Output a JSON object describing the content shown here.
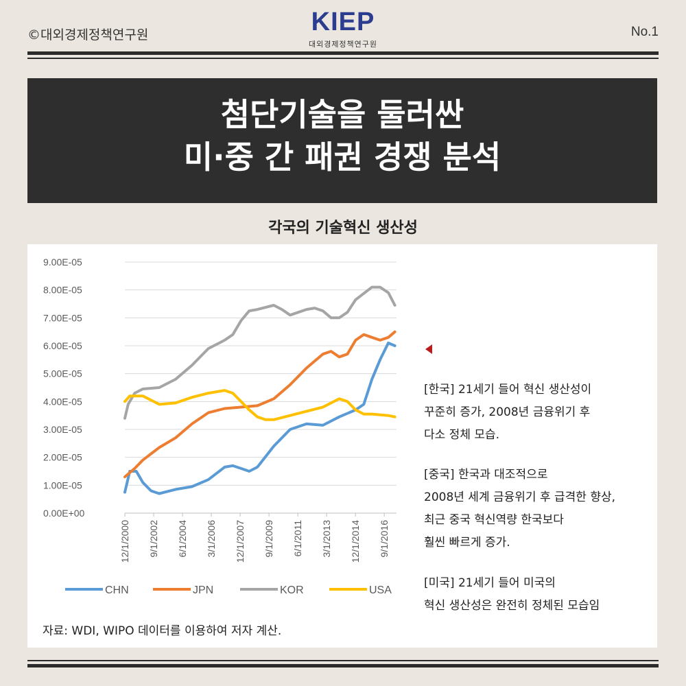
{
  "header": {
    "copyright": "©대외경제정책연구원",
    "logo_text": "KIEP",
    "logo_subtext": "대외경제정책연구원",
    "page_number": "No.1"
  },
  "banner": {
    "line1": "첨단기술을 둘러싼",
    "line2": "미·중 간 패권 경쟁 분석"
  },
  "subtitle": "각국의 기술혁신 생산성",
  "source": "자료: WDI, WIPO 데이터를 이용하여 저자 계산.",
  "notes": {
    "korea": [
      "[한국] 21세기 들어 혁신 생산성이",
      "꾸준히 증가, 2008년 금융위기 후",
      "다소 정체 모습."
    ],
    "china": [
      "[중국] 한국과 대조적으로",
      "2008년 세계 금융위기 후 급격한 향상,",
      "최근 중국 혁신역량 한국보다",
      "훨씬 빠르게 증가."
    ],
    "usa": [
      "[미국] 21세기 들어 미국의",
      "혁신 생산성은 완전히 정체된 모습임"
    ]
  },
  "colors": {
    "CHN": "#5b9bd5",
    "JPN": "#ed7d31",
    "KOR": "#a5a5a5",
    "USA": "#ffc000",
    "marker": "#b91c1c"
  },
  "chart_data": {
    "type": "line",
    "title": "",
    "ylim": [
      0,
      9e-05
    ],
    "ytick_labels": [
      "0.00E+00",
      "1.00E-05",
      "2.00E-05",
      "3.00E-05",
      "4.00E-05",
      "5.00E-05",
      "6.00E-05",
      "7.00E-05",
      "8.00E-05",
      "9.00E-05"
    ],
    "xtick_labels": [
      "12/1/2000",
      "9/1/2002",
      "6/1/2004",
      "3/1/2006",
      "12/1/2007",
      "9/1/2009",
      "6/1/2011",
      "3/1/2013",
      "12/1/2014",
      "9/1/2016"
    ],
    "x_range": [
      2000.9,
      2017.5
    ],
    "grid": true,
    "legend": "bottom",
    "series": [
      {
        "name": "CHN",
        "x": [
          2000.9,
          2001.2,
          2001.6,
          2002.0,
          2002.5,
          2003.0,
          2004.0,
          2005.0,
          2006.0,
          2007.0,
          2007.5,
          2008.0,
          2008.5,
          2009.0,
          2010.0,
          2011.0,
          2012.0,
          2013.0,
          2014.0,
          2015.0,
          2015.5,
          2016.0,
          2016.5,
          2017.0,
          2017.4
        ],
        "y": [
          7.5e-06,
          1.5e-05,
          1.5e-05,
          1.1e-05,
          8e-06,
          7e-06,
          8.5e-06,
          9.5e-06,
          1.2e-05,
          1.65e-05,
          1.7e-05,
          1.6e-05,
          1.5e-05,
          1.65e-05,
          2.4e-05,
          3e-05,
          3.2e-05,
          3.15e-05,
          3.45e-05,
          3.7e-05,
          3.9e-05,
          4.8e-05,
          5.5e-05,
          6.1e-05,
          6e-05
        ]
      },
      {
        "name": "JPN",
        "x": [
          2000.9,
          2001.5,
          2002.0,
          2003.0,
          2004.0,
          2005.0,
          2006.0,
          2007.0,
          2008.0,
          2009.0,
          2010.0,
          2011.0,
          2012.0,
          2013.0,
          2013.5,
          2014.0,
          2014.5,
          2015.0,
          2015.5,
          2016.0,
          2016.5,
          2017.0,
          2017.4
        ],
        "y": [
          1.3e-05,
          1.6e-05,
          1.9e-05,
          2.35e-05,
          2.7e-05,
          3.2e-05,
          3.6e-05,
          3.75e-05,
          3.8e-05,
          3.85e-05,
          4.1e-05,
          4.6e-05,
          5.2e-05,
          5.7e-05,
          5.8e-05,
          5.6e-05,
          5.7e-05,
          6.2e-05,
          6.4e-05,
          6.3e-05,
          6.2e-05,
          6.3e-05,
          6.5e-05
        ]
      },
      {
        "name": "KOR",
        "x": [
          2000.9,
          2001.1,
          2001.5,
          2002.0,
          2003.0,
          2004.0,
          2005.0,
          2006.0,
          2007.0,
          2007.5,
          2008.0,
          2008.5,
          2009.0,
          2010.0,
          2010.5,
          2011.0,
          2012.0,
          2012.5,
          2013.0,
          2013.5,
          2014.0,
          2014.5,
          2015.0,
          2016.0,
          2016.5,
          2017.0,
          2017.4
        ],
        "y": [
          3.4e-05,
          3.9e-05,
          4.3e-05,
          4.45e-05,
          4.5e-05,
          4.8e-05,
          5.3e-05,
          5.9e-05,
          6.2e-05,
          6.4e-05,
          6.9e-05,
          7.25e-05,
          7.3e-05,
          7.45e-05,
          7.3e-05,
          7.1e-05,
          7.3e-05,
          7.35e-05,
          7.25e-05,
          7e-05,
          7e-05,
          7.2e-05,
          7.65e-05,
          8.1e-05,
          8.1e-05,
          7.9e-05,
          7.45e-05
        ]
      },
      {
        "name": "USA",
        "x": [
          2000.9,
          2001.2,
          2002.0,
          2003.0,
          2004.0,
          2005.0,
          2006.0,
          2007.0,
          2007.5,
          2008.0,
          2008.5,
          2009.0,
          2009.5,
          2010.0,
          2011.0,
          2012.0,
          2013.0,
          2014.0,
          2014.5,
          2015.0,
          2015.5,
          2016.0,
          2017.0,
          2017.4
        ],
        "y": [
          4e-05,
          4.2e-05,
          4.2e-05,
          3.9e-05,
          3.95e-05,
          4.15e-05,
          4.3e-05,
          4.4e-05,
          4.3e-05,
          4e-05,
          3.7e-05,
          3.45e-05,
          3.35e-05,
          3.35e-05,
          3.5e-05,
          3.65e-05,
          3.8e-05,
          4.1e-05,
          4e-05,
          3.7e-05,
          3.55e-05,
          3.55e-05,
          3.5e-05,
          3.45e-05
        ]
      }
    ]
  }
}
